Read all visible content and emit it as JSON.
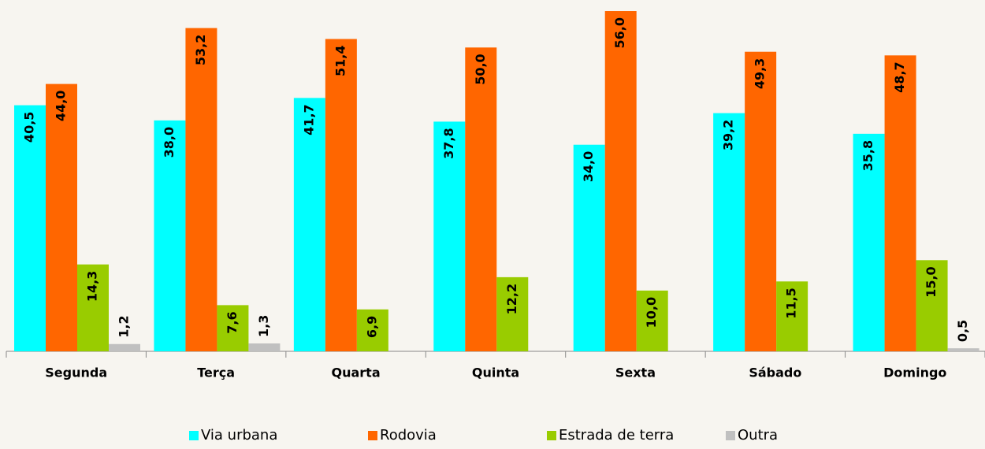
{
  "chart_data": {
    "type": "bar",
    "categories": [
      "Segunda",
      "Terça",
      "Quarta",
      "Quinta",
      "Sexta",
      "Sábado",
      "Domingo"
    ],
    "series": [
      {
        "name": "Via urbana",
        "color": "#00ffff",
        "values": [
          40.5,
          38.0,
          41.7,
          37.8,
          34.0,
          39.2,
          35.8
        ],
        "value_labels": [
          "40,5",
          "38,0",
          "41,7",
          "37,8",
          "34,0",
          "39,2",
          "35,8"
        ]
      },
      {
        "name": "Rodovia",
        "color": "#ff6600",
        "values": [
          44.0,
          53.2,
          51.4,
          50.0,
          56.0,
          49.3,
          48.7
        ],
        "value_labels": [
          "44,0",
          "53,2",
          "51,4",
          "50,0",
          "56,0",
          "49,3",
          "48,7"
        ]
      },
      {
        "name": "Estrada de terra",
        "color": "#99cc00",
        "values": [
          14.3,
          7.6,
          6.9,
          12.2,
          10.0,
          11.5,
          15.0
        ],
        "value_labels": [
          "14,3",
          "7,6",
          "6,9",
          "12,2",
          "10,0",
          "11,5",
          "15,0"
        ]
      },
      {
        "name": "Outra",
        "color": "#c0c0c0",
        "values": [
          1.2,
          1.3,
          null,
          null,
          null,
          null,
          0.5
        ],
        "value_labels": [
          "1,2",
          "1,3",
          null,
          null,
          null,
          null,
          "0,5"
        ]
      }
    ],
    "ylim": [
      0,
      57
    ],
    "legend": "bottom"
  }
}
